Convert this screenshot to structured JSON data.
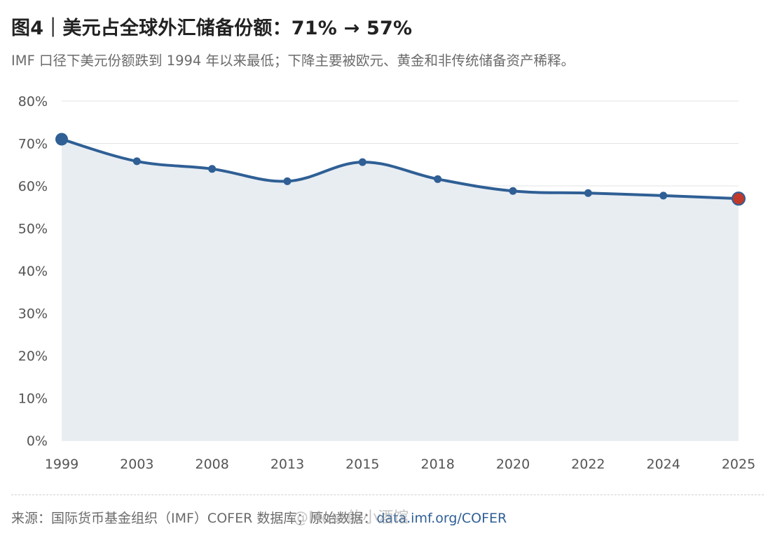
{
  "header": {
    "title": "图4｜美元占全球外汇储备份额：71% → 57%",
    "subtitle": "IMF 口径下美元份额跌到 1994 年以来最低；下降主要被欧元、黄金和非传统储备资产稀释。"
  },
  "footer": {
    "source_label": "来源：国际货币基金组织（IMF）COFER 数据库；原始数据：",
    "source_link": "data.imf.org/COFER",
    "watermark": "@Moss的小酒馆"
  },
  "colors": {
    "line": "#2f5f95",
    "area": "#e8edf2",
    "grid": "#e3e3e3",
    "highlight": "#c0392b"
  },
  "chart_data": {
    "type": "area",
    "title": "",
    "xlabel": "",
    "ylabel": "",
    "categories": [
      "1999",
      "2003",
      "2008",
      "2013",
      "2015",
      "2018",
      "2020",
      "2022",
      "2024",
      "2025"
    ],
    "series": [
      {
        "values": [
          71,
          65.8,
          64,
          61.1,
          65.6,
          61.6,
          58.8,
          58.3,
          57.7,
          57
        ]
      }
    ],
    "ylim": [
      0,
      80
    ],
    "yticks": [
      0,
      10,
      20,
      30,
      40,
      50,
      60,
      70,
      80
    ],
    "ytick_labels": [
      "0%",
      "10%",
      "20%",
      "30%",
      "40%",
      "50%",
      "60%",
      "70%",
      "80%"
    ],
    "grid": true,
    "legend": "none",
    "highlight": {
      "first": "1999",
      "last": "2025"
    }
  }
}
